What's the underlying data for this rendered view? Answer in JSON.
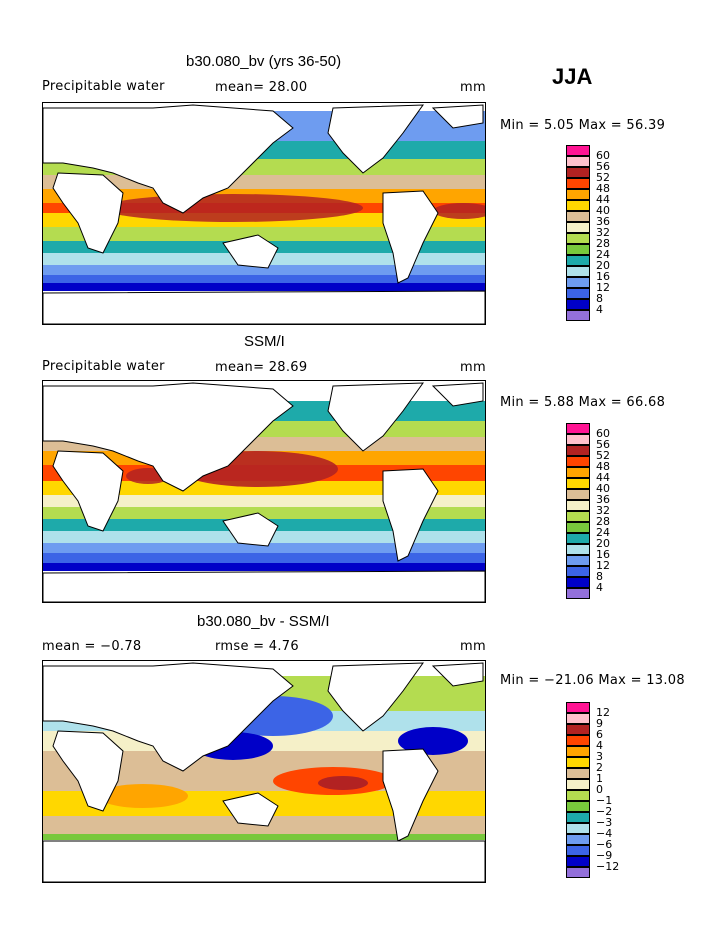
{
  "season": "JJA",
  "colors": {
    "c1": "#9370db",
    "c2": "#0000c8",
    "c3": "#3c64e6",
    "c4": "#6e9cf0",
    "c5": "#afe1eb",
    "c6": "#1eaaaa",
    "c7": "#78c83c",
    "c8": "#b4dc50",
    "c9": "#f5f0c8",
    "c10": "#dcbe96",
    "c11": "#ffd700",
    "c12": "#ffa500",
    "c13": "#ff4500",
    "c14": "#b22222",
    "c15": "#ffc0cb",
    "c16": "#ff1493",
    "land": "#ffffff",
    "outline": "#000000"
  },
  "panels": [
    {
      "title": "b30.080_bv (yrs 36-50)",
      "left_label": "Precipitable water",
      "mid_label": "mean=  28.00",
      "unit": "mm",
      "stats": "Min =   5.05 Max =  56.39",
      "colorbar": [
        "4",
        "8",
        "12",
        "16",
        "20",
        "24",
        "28",
        "32",
        "36",
        "40",
        "44",
        "48",
        "52",
        "56",
        "60"
      ]
    },
    {
      "title": "SSM/I",
      "left_label": "Precipitable water",
      "mid_label": "mean=  28.69",
      "unit": "mm",
      "stats": "Min =   5.88 Max =  66.68",
      "colorbar": [
        "4",
        "8",
        "12",
        "16",
        "20",
        "24",
        "28",
        "32",
        "36",
        "40",
        "44",
        "48",
        "52",
        "56",
        "60"
      ]
    },
    {
      "title": "b30.080_bv - SSM/I",
      "left_label": "mean =  −0.78",
      "mid_label": "rmse =    4.76",
      "unit": "mm",
      "stats": "Min = −21.06 Max =  13.08",
      "colorbar": [
        "−12",
        "−9",
        "−6",
        "−4",
        "−3",
        "−2",
        "−1",
        "0",
        "1",
        "2",
        "3",
        "4",
        "6",
        "9",
        "12"
      ]
    }
  ]
}
